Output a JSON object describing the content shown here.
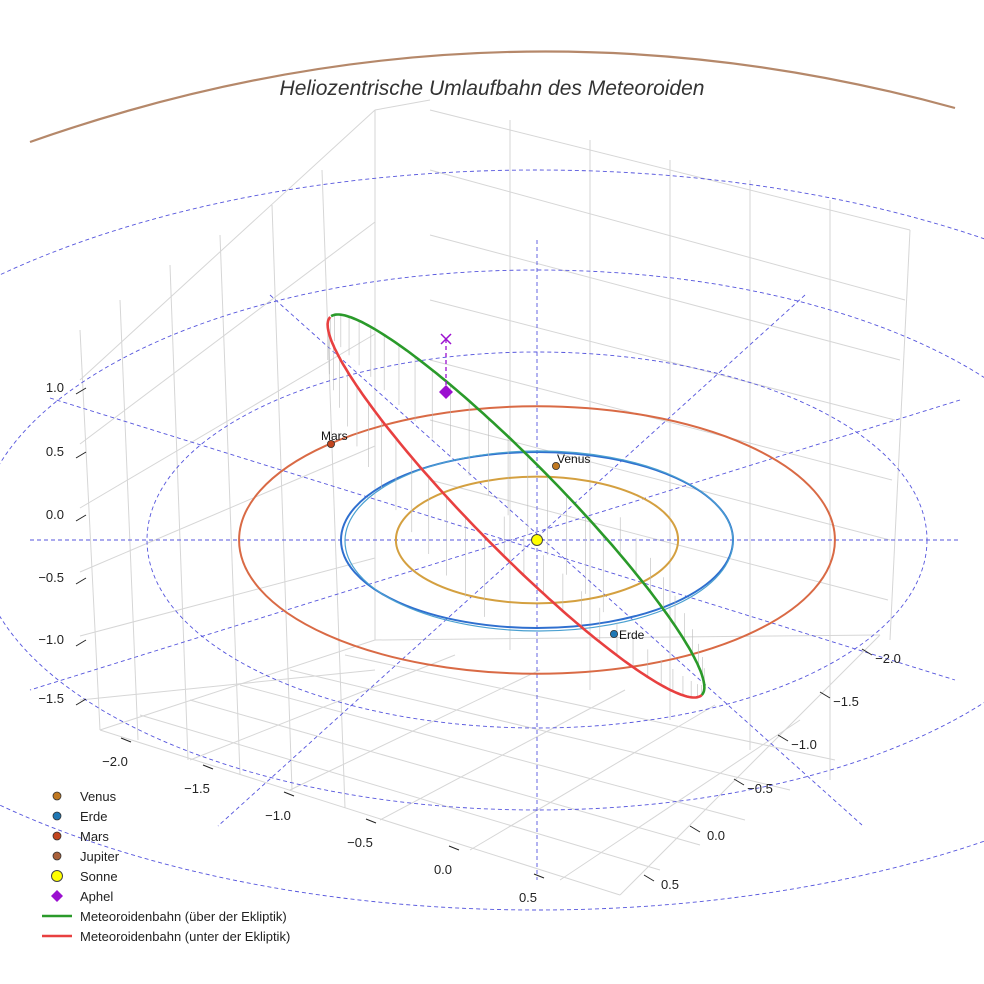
{
  "chart_data": {
    "type": "3d-orbit",
    "title": "Heliozentrische Umlaufbahn des Meteoroiden",
    "x_ticks": [
      "−2.0",
      "−1.5",
      "−1.0",
      "−0.5",
      "0.0",
      "0.5"
    ],
    "y_ticks": [
      "−2.0",
      "−1.5",
      "−1.0",
      "−0.5",
      "0.0",
      "0.5"
    ],
    "z_ticks": [
      "1.0",
      "0.5",
      "0.0",
      "−0.5",
      "−1.0",
      "−1.5"
    ],
    "xlim": [
      -2.3,
      0.7
    ],
    "ylim": [
      -2.3,
      0.7
    ],
    "zlim": [
      -1.6,
      1.1
    ],
    "orbits": [
      {
        "name": "Venus",
        "radius_au": 0.72,
        "color": "#d4a040"
      },
      {
        "name": "Erde",
        "radius_au": 1.0,
        "color": "#2f6fcf"
      },
      {
        "name": "Mars",
        "radius_au": 1.52,
        "color": "#d96a45"
      }
    ],
    "planet_labels": [
      "Venus",
      "Erde",
      "Mars"
    ],
    "meteoroid_orbit": {
      "above_ecliptic_color": "#2a9a2a",
      "below_ecliptic_color": "#e84040",
      "aphelion_color": "#9b10d0"
    },
    "sun_color": "#ffff00",
    "legend": [
      {
        "label": "Venus",
        "symbol": "dot",
        "color": "#c07820"
      },
      {
        "label": "Erde",
        "symbol": "dot",
        "color": "#1f77b4"
      },
      {
        "label": "Mars",
        "symbol": "dot",
        "color": "#c2451e"
      },
      {
        "label": "Jupiter",
        "symbol": "dot",
        "color": "#a9603a"
      },
      {
        "label": "Sonne",
        "symbol": "sun",
        "color": "#ffff00"
      },
      {
        "label": "Aphel",
        "symbol": "diamond",
        "color": "#9b10d0"
      },
      {
        "label": "Meteoroidenbahn (über der Ekliptik)",
        "symbol": "line",
        "color": "#2a9a2a"
      },
      {
        "label": "Meteoroidenbahn (unter der Ekliptik)",
        "symbol": "line",
        "color": "#e84040"
      }
    ]
  }
}
